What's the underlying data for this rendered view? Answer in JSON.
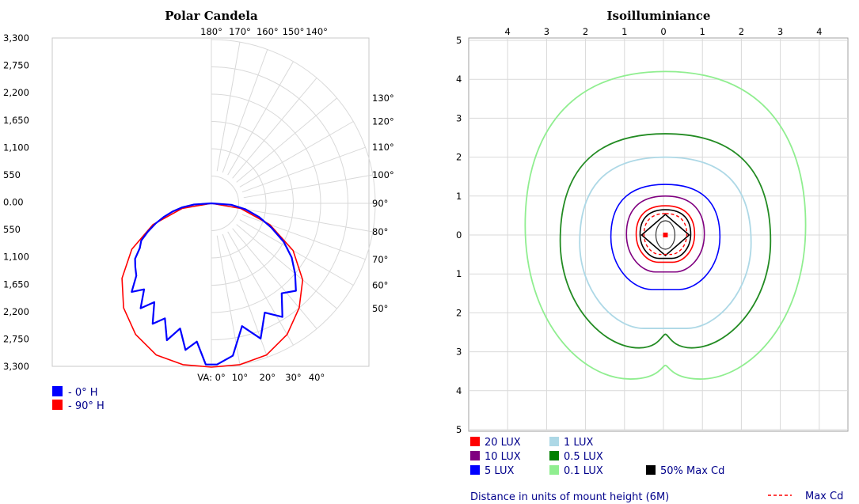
{
  "chart_data": [
    {
      "type": "polar-candela",
      "title": "Polar Candela",
      "radial_tick_labels": [
        "3,300",
        "2,750",
        "2,200",
        "1,650",
        "1,100",
        "550",
        "0.00",
        "550",
        "1,100",
        "1,650",
        "2,200",
        "2,750",
        "3,300"
      ],
      "rmax": 3300,
      "angle_tick_labels": [
        {
          "angle": 180,
          "label": "180°"
        },
        {
          "angle": 170,
          "label": "170°"
        },
        {
          "angle": 160,
          "label": "160°"
        },
        {
          "angle": 150,
          "label": "150°"
        },
        {
          "angle": 140,
          "label": "140°"
        },
        {
          "angle": 130,
          "label": "130°"
        },
        {
          "angle": 120,
          "label": "120°"
        },
        {
          "angle": 110,
          "label": "110°"
        },
        {
          "angle": 100,
          "label": "100°"
        },
        {
          "angle": 90,
          "label": "90°"
        },
        {
          "angle": 80,
          "label": "80°"
        },
        {
          "angle": 70,
          "label": "70°"
        },
        {
          "angle": 60,
          "label": "60°"
        },
        {
          "angle": 50,
          "label": "50°"
        },
        {
          "angle": 40,
          "label": "40°"
        },
        {
          "angle": 30,
          "label": "30°"
        },
        {
          "angle": 20,
          "label": "20°"
        },
        {
          "angle": 10,
          "label": "10°"
        },
        {
          "angle": 0,
          "label": "VA: 0°"
        }
      ],
      "series": [
        {
          "name": "- 0° H",
          "color": "#0000ff",
          "points": [
            [
              90,
              0
            ],
            [
              86,
              400
            ],
            [
              80,
              700
            ],
            [
              74,
              1000
            ],
            [
              68,
              1300
            ],
            [
              62,
              1650
            ],
            [
              56,
              1950
            ],
            [
              50,
              2200
            ],
            [
              44,
              2450
            ],
            [
              38,
              2300
            ],
            [
              32,
              2700
            ],
            [
              26,
              2450
            ],
            [
              20,
              2900
            ],
            [
              14,
              2550
            ],
            [
              8,
              3100
            ],
            [
              2,
              3250
            ],
            [
              -2,
              3250
            ],
            [
              -6,
              2800
            ],
            [
              -10,
              3000
            ],
            [
              -14,
              2600
            ],
            [
              -18,
              2900
            ],
            [
              -22,
              2500
            ],
            [
              -26,
              2700
            ],
            [
              -30,
              2300
            ],
            [
              -34,
              2550
            ],
            [
              -38,
              2200
            ],
            [
              -42,
              2400
            ],
            [
              -46,
              2100
            ],
            [
              -50,
              2000
            ],
            [
              -54,
              1900
            ],
            [
              -58,
              1700
            ],
            [
              -62,
              1600
            ],
            [
              -66,
              1400
            ],
            [
              -70,
              1200
            ],
            [
              -74,
              1000
            ],
            [
              -78,
              800
            ],
            [
              -82,
              600
            ],
            [
              -86,
              350
            ],
            [
              -90,
              0
            ]
          ]
        },
        {
          "name": "- 90° H",
          "color": "#ff0000",
          "points": [
            [
              90,
              0
            ],
            [
              80,
              600
            ],
            [
              70,
              1250
            ],
            [
              60,
              1900
            ],
            [
              50,
              2400
            ],
            [
              40,
              2750
            ],
            [
              30,
              3050
            ],
            [
              20,
              3250
            ],
            [
              10,
              3300
            ],
            [
              0,
              3300
            ],
            [
              -10,
              3300
            ],
            [
              -20,
              3250
            ],
            [
              -30,
              3050
            ],
            [
              -40,
              2750
            ],
            [
              -50,
              2350
            ],
            [
              -60,
              1850
            ],
            [
              -70,
              1250
            ],
            [
              -80,
              600
            ],
            [
              -90,
              0
            ]
          ]
        }
      ]
    },
    {
      "type": "contour",
      "title": "Isoilluminiance",
      "top_tick_labels": [
        "4",
        "3",
        "2",
        "1",
        "0",
        "1",
        "2",
        "3",
        "4"
      ],
      "left_tick_labels": [
        "5",
        "4",
        "3",
        "2",
        "1",
        "0",
        "1",
        "2",
        "3",
        "4",
        "5"
      ],
      "x_range": [
        -5,
        5
      ],
      "y_range": [
        -5,
        5
      ],
      "contours": [
        {
          "name": "0.1  LUX",
          "color": "#90ee90",
          "swatch": "#90ee90",
          "half_width": 3.6,
          "top": 4.2,
          "bottom": -3.7
        },
        {
          "name": "0.5  LUX",
          "color": "#228b22",
          "swatch": "#008000",
          "half_width": 2.7,
          "top": 2.6,
          "bottom": -2.9
        },
        {
          "name": "1  LUX",
          "color": "#add8e6",
          "swatch": "#add8e6",
          "half_width": 2.2,
          "top": 2.0,
          "bottom": -2.4
        },
        {
          "name": "5  LUX",
          "color": "#0000ff",
          "swatch": "#0000ff",
          "half_width": 1.4,
          "top": 1.3,
          "bottom": -1.4
        },
        {
          "name": "10  LUX",
          "color": "#800080",
          "swatch": "#800080",
          "half_width": 1.0,
          "top": 1.0,
          "bottom": -0.95
        },
        {
          "name": "20  LUX",
          "color": "#ff0000",
          "swatch": "#ff0000",
          "half_width": 0.75,
          "top": 0.75,
          "bottom": -0.7
        },
        {
          "name": "50% Max Cd",
          "color": "#000000",
          "swatch": "#000000",
          "half_width": 0.65,
          "top": 0.65,
          "bottom": -0.6
        }
      ],
      "max_cd": {
        "name": "Max Cd",
        "color": "#ff0000",
        "half_width": 0.55,
        "top": 0.55,
        "bottom": -0.5
      },
      "footnote": "Distance in units of mount height (6M)"
    }
  ]
}
